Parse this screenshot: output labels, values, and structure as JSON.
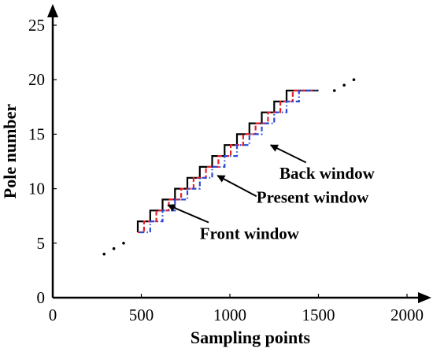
{
  "chart_data": {
    "type": "line",
    "xlabel": "Sampling points",
    "ylabel": "Pole number",
    "xlim": [
      0,
      2000
    ],
    "ylim": [
      0,
      25
    ],
    "x_ticks": [
      0,
      500,
      1000,
      1500,
      2000
    ],
    "y_ticks": [
      0,
      5,
      10,
      15,
      20,
      25
    ],
    "grid": false,
    "series": [
      {
        "style": "solid",
        "color": "#000000",
        "x": [
          480,
          480,
          550,
          550,
          620,
          620,
          690,
          690,
          760,
          760,
          830,
          830,
          900,
          900,
          970,
          970,
          1040,
          1040,
          1110,
          1110,
          1180,
          1180,
          1250,
          1250,
          1320,
          1320,
          1390,
          1390,
          1460,
          1460,
          1500,
          1500
        ],
        "y": [
          6,
          7,
          7,
          8,
          8,
          9,
          9,
          10,
          10,
          11,
          11,
          12,
          12,
          13,
          13,
          14,
          14,
          15,
          15,
          16,
          16,
          17,
          17,
          18,
          18,
          19,
          19,
          19,
          19,
          19,
          19,
          19
        ]
      },
      {
        "style": "dashed",
        "color": "#e8202a",
        "x": [
          480,
          515,
          515,
          585,
          585,
          655,
          655,
          725,
          725,
          795,
          795,
          865,
          865,
          935,
          935,
          1005,
          1005,
          1075,
          1075,
          1145,
          1145,
          1215,
          1215,
          1285,
          1285,
          1355,
          1355,
          1425,
          1425,
          1485,
          1485
        ],
        "y": [
          6,
          6,
          7,
          7,
          8,
          8,
          9,
          9,
          10,
          10,
          11,
          11,
          12,
          12,
          13,
          13,
          14,
          14,
          15,
          15,
          16,
          16,
          17,
          17,
          18,
          18,
          19,
          19,
          19,
          19,
          19
        ]
      },
      {
        "style": "dashdot",
        "color": "#2a4bd6",
        "x": [
          490,
          550,
          550,
          620,
          620,
          690,
          690,
          760,
          760,
          830,
          830,
          900,
          900,
          970,
          970,
          1040,
          1040,
          1110,
          1110,
          1180,
          1180,
          1250,
          1250,
          1320,
          1320,
          1390,
          1390,
          1460,
          1460,
          1495
        ],
        "y": [
          6,
          6,
          7,
          7,
          8,
          8,
          9,
          9,
          10,
          10,
          11,
          11,
          12,
          12,
          13,
          13,
          14,
          14,
          15,
          15,
          16,
          16,
          17,
          17,
          18,
          18,
          19,
          19,
          19,
          19
        ]
      }
    ],
    "dots_low": {
      "x": [
        290,
        345,
        400
      ],
      "y": [
        4,
        4.5,
        5
      ]
    },
    "dots_high": {
      "x": [
        1590,
        1645,
        1700
      ],
      "y": [
        19,
        19.5,
        20
      ]
    },
    "annotations": [
      {
        "text": "Back window",
        "target": [
          1230,
          14
        ],
        "text_pos": [
          1280,
          10.9
        ],
        "arrow_from": [
          1430,
          12.4
        ]
      },
      {
        "text": "Present window",
        "target": [
          930,
          11.2
        ],
        "text_pos": [
          1150,
          8.7
        ],
        "arrow_from": [
          1150,
          9.3
        ]
      },
      {
        "text": "Front window",
        "target": [
          650,
          8.5
        ],
        "text_pos": [
          830,
          5.4
        ],
        "arrow_from": [
          880,
          6.9
        ]
      }
    ]
  }
}
